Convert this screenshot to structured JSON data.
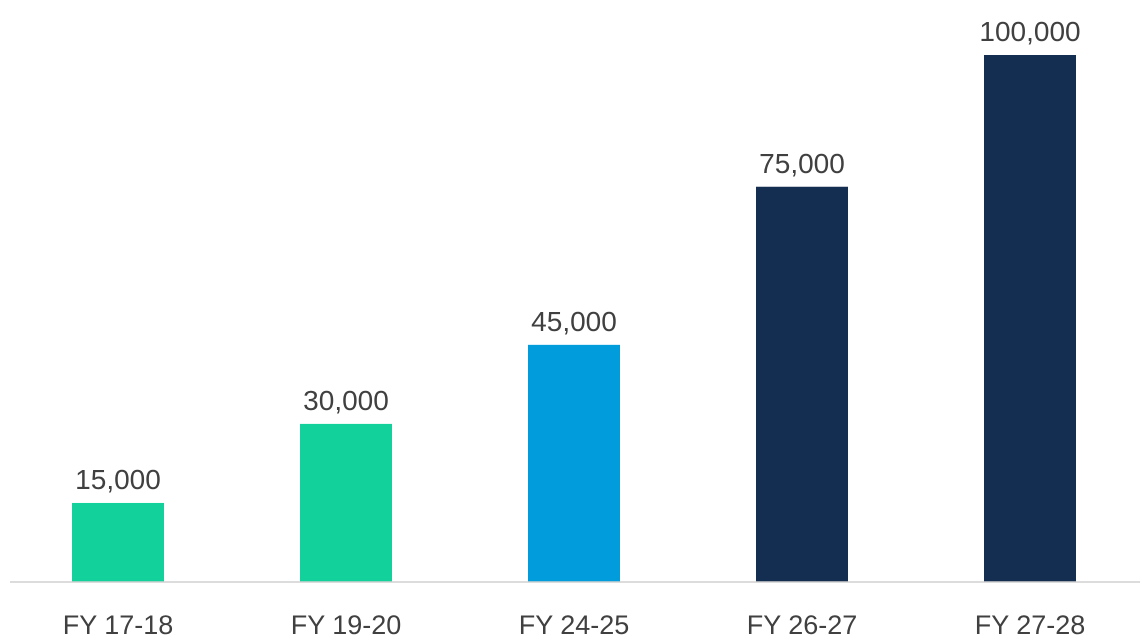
{
  "chart_data": {
    "type": "bar",
    "title": "",
    "xlabel": "",
    "ylabel": "",
    "categories": [
      "FY 17-18",
      "FY 19-20",
      "FY 24-25",
      "FY 26-27",
      "FY 27-28"
    ],
    "values": [
      15000,
      30000,
      45000,
      75000,
      100000
    ],
    "value_labels": [
      "15,000",
      "30,000",
      "45,000",
      "75,000",
      "100,000"
    ],
    "bar_colors": [
      "#13d19a",
      "#13d19a",
      "#009cdb",
      "#142e51",
      "#142e51"
    ],
    "axis_color": "#d0d0d0",
    "ylim": [
      0,
      100000
    ],
    "grid": false,
    "legend": "none"
  }
}
